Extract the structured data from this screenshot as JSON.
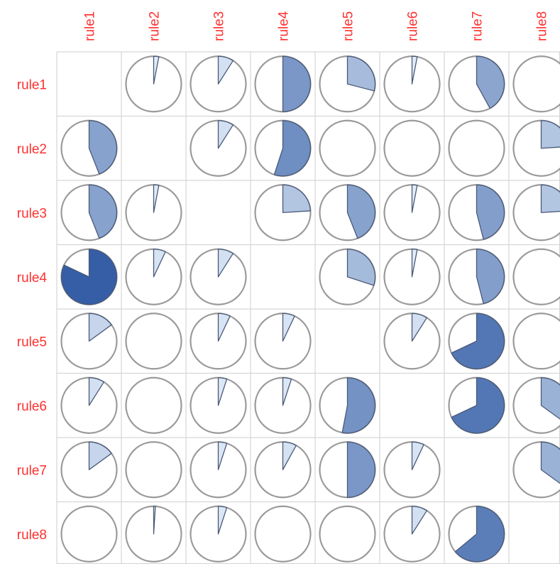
{
  "chart_data": {
    "type": "heatmap",
    "subtype": "correlation-matrix-pie",
    "title": "",
    "xlabel": "",
    "ylabel": "",
    "row_labels": [
      "rule1",
      "rule2",
      "rule3",
      "rule4",
      "rule5",
      "rule6",
      "rule7",
      "rule8"
    ],
    "col_labels": [
      "rule1",
      "rule2",
      "rule3",
      "rule4",
      "rule5",
      "rule6",
      "rule7",
      "rule8"
    ],
    "value_range": [
      0,
      1
    ],
    "diagonal": "empty",
    "values": [
      [
        null,
        0.03,
        0.09,
        0.5,
        0.29,
        0.03,
        0.42,
        0.0
      ],
      [
        0.44,
        null,
        0.09,
        0.55,
        0.0,
        0.0,
        0.0,
        0.24
      ],
      [
        0.44,
        0.03,
        null,
        0.24,
        0.44,
        0.03,
        0.46,
        0.24
      ],
      [
        0.82,
        0.07,
        0.09,
        null,
        0.3,
        0.03,
        0.46,
        0.0
      ],
      [
        0.15,
        0.0,
        0.07,
        0.07,
        null,
        0.09,
        0.68,
        0.0
      ],
      [
        0.09,
        0.0,
        0.05,
        0.05,
        0.53,
        null,
        0.68,
        0.35
      ],
      [
        0.15,
        0.0,
        0.05,
        0.08,
        0.5,
        0.07,
        null,
        0.35
      ],
      [
        0.0,
        0.01,
        0.05,
        0.0,
        0.0,
        0.09,
        0.64,
        null
      ]
    ],
    "color_scale": [
      "#e6f0fa",
      "#0e3e93"
    ],
    "label_color": "#ff3030",
    "grid": true
  }
}
